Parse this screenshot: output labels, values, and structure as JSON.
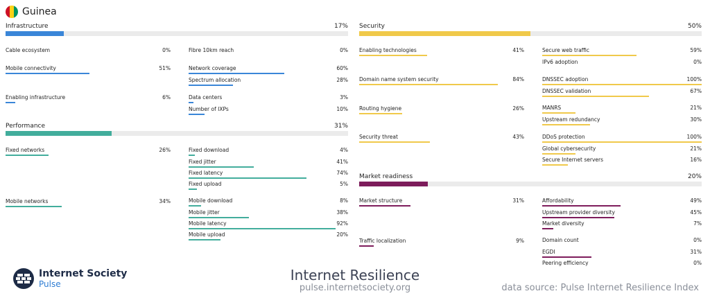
{
  "country": {
    "name": "Guinea",
    "flag_colors": [
      "#ce1126",
      "#fcd116",
      "#009460"
    ]
  },
  "colors": {
    "infrastructure": "#3a86d8",
    "security": "#f0c94a",
    "performance": "#42ad9c",
    "market": "#7d1c5b"
  },
  "pillars": [
    {
      "id": "infrastructure",
      "label": "Infrastructure",
      "value": "17%",
      "score": 17,
      "metrics": [
        {
          "id": "cable-ecosystem",
          "label": "Cable ecosystem",
          "value": "0%",
          "score": 0
        },
        {
          "id": "mobile-connectivity",
          "label": "Mobile connectivity",
          "value": "51%",
          "score": 51
        },
        {
          "id": "enabling-infrastructure",
          "label": "Enabling infrastructure",
          "value": "6%",
          "score": 6
        },
        {
          "id": "fibre-10km-reach",
          "label": "Fibre 10km reach",
          "value": "0%",
          "score": 0
        },
        {
          "id": "network-coverage",
          "label": "Network coverage",
          "value": "60%",
          "score": 60
        },
        {
          "id": "spectrum-allocation",
          "label": "Spectrum allocation",
          "value": "28%",
          "score": 28
        },
        {
          "id": "data-centers",
          "label": "Data centers",
          "value": "3%",
          "score": 3
        },
        {
          "id": "number-of-ixps",
          "label": "Number of IXPs",
          "value": "10%",
          "score": 10
        }
      ]
    },
    {
      "id": "performance",
      "label": "Performance",
      "value": "31%",
      "score": 31,
      "metrics": [
        {
          "id": "fixed-networks",
          "label": "Fixed networks",
          "value": "26%",
          "score": 26
        },
        {
          "id": "mobile-networks",
          "label": "Mobile networks",
          "value": "34%",
          "score": 34
        },
        {
          "id": "fixed-download",
          "label": "Fixed download",
          "value": "4%",
          "score": 4
        },
        {
          "id": "fixed-jitter",
          "label": "Fixed jitter",
          "value": "41%",
          "score": 41
        },
        {
          "id": "fixed-latency",
          "label": "Fixed latency",
          "value": "74%",
          "score": 74
        },
        {
          "id": "fixed-upload",
          "label": "Fixed upload",
          "value": "5%",
          "score": 5
        },
        {
          "id": "mobile-download",
          "label": "Mobile download",
          "value": "8%",
          "score": 8
        },
        {
          "id": "mobile-jitter",
          "label": "Mobile jitter",
          "value": "38%",
          "score": 38
        },
        {
          "id": "mobile-latency",
          "label": "Mobile latency",
          "value": "92%",
          "score": 92
        },
        {
          "id": "mobile-upload",
          "label": "Mobile upload",
          "value": "20%",
          "score": 20
        }
      ]
    },
    {
      "id": "security",
      "label": "Security",
      "value": "50%",
      "score": 50,
      "metrics": [
        {
          "id": "enabling-technologies",
          "label": "Enabling technologies",
          "value": "41%",
          "score": 41
        },
        {
          "id": "domain-name-system-security",
          "label": "Domain name system security",
          "value": "84%",
          "score": 84
        },
        {
          "id": "routing-hygiene",
          "label": "Routing hygiene",
          "value": "26%",
          "score": 26
        },
        {
          "id": "security-threat",
          "label": "Security threat",
          "value": "43%",
          "score": 43
        },
        {
          "id": "secure-web-traffic",
          "label": "Secure web traffic",
          "value": "59%",
          "score": 59
        },
        {
          "id": "ipv6-adoption",
          "label": "IPv6 adoption",
          "value": "0%",
          "score": 0
        },
        {
          "id": "dnssec-adoption",
          "label": "DNSSEC adoption",
          "value": "100%",
          "score": 100
        },
        {
          "id": "dnssec-validation",
          "label": "DNSSEC validation",
          "value": "67%",
          "score": 67
        },
        {
          "id": "manrs",
          "label": "MANRS",
          "value": "21%",
          "score": 21
        },
        {
          "id": "upstream-redundancy",
          "label": "Upstream redundancy",
          "value": "30%",
          "score": 30
        },
        {
          "id": "ddos-protection",
          "label": "DDoS protection",
          "value": "100%",
          "score": 100
        },
        {
          "id": "global-cybersecurity",
          "label": "Global cybersecurity",
          "value": "21%",
          "score": 21
        },
        {
          "id": "secure-internet-servers",
          "label": "Secure Internet servers",
          "value": "16%",
          "score": 16
        }
      ]
    },
    {
      "id": "market",
      "label": "Market readiness",
      "value": "20%",
      "score": 20,
      "metrics": [
        {
          "id": "market-structure",
          "label": "Market structure",
          "value": "31%",
          "score": 31
        },
        {
          "id": "traffic-localization",
          "label": "Traffic localization",
          "value": "9%",
          "score": 9
        },
        {
          "id": "affordability",
          "label": "Affordability",
          "value": "49%",
          "score": 49
        },
        {
          "id": "upstream-provider-diversity",
          "label": "Upstream provider diversity",
          "value": "45%",
          "score": 45
        },
        {
          "id": "market-diversity",
          "label": "Market diversity",
          "value": "7%",
          "score": 7
        },
        {
          "id": "domain-count",
          "label": "Domain count",
          "value": "0%",
          "score": 0
        },
        {
          "id": "egdi",
          "label": "EGDI",
          "value": "31%",
          "score": 31
        },
        {
          "id": "peering-efficiency",
          "label": "Peering efficiency",
          "value": "0%",
          "score": 0
        }
      ]
    }
  ],
  "footer": {
    "logo_main": "Internet Society",
    "logo_sub": "Pulse",
    "title": "Internet Resilience",
    "url": "pulse.internetsociety.org",
    "source": "data source: Pulse Internet Resilience Index"
  }
}
